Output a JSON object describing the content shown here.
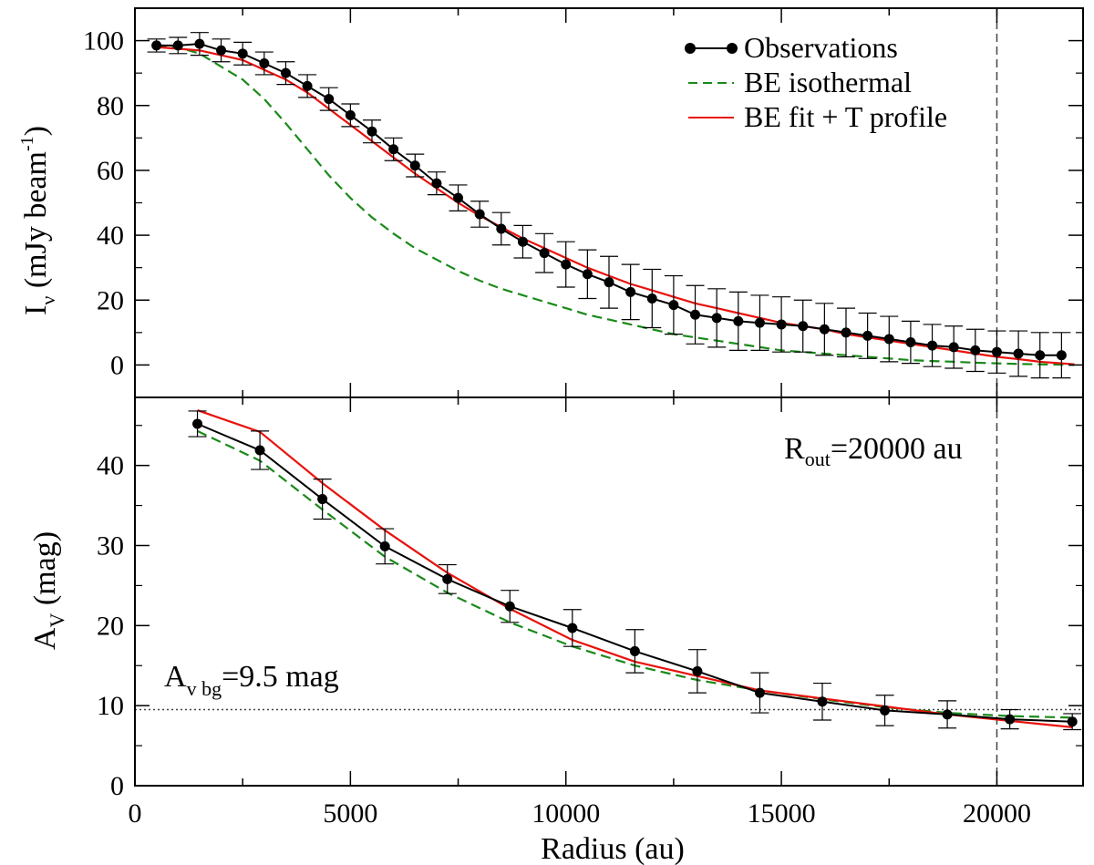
{
  "chart_data": [
    {
      "type": "line",
      "panel": "top",
      "xlim": [
        0,
        22000
      ],
      "ylim": [
        -10,
        110
      ],
      "yticks": [
        0,
        20,
        40,
        60,
        80,
        100
      ],
      "ylabel": {
        "main": "I",
        "sub": "ν",
        "rest": " (mJy beam",
        "sup": "-1",
        "end": ")"
      },
      "vline_x": 20000,
      "legend": [
        "Observations",
        "BE isothermal",
        "BE fit + T profile"
      ],
      "colors": {
        "observations": "#000000",
        "isothermal": "#1a8a1a",
        "fit": "#e8120c"
      },
      "observations": {
        "x": [
          500,
          1000,
          1500,
          2000,
          2500,
          3000,
          3500,
          4000,
          4500,
          5000,
          5500,
          6000,
          6500,
          7000,
          7500,
          8000,
          8500,
          9000,
          9500,
          10000,
          10500,
          11000,
          11500,
          12000,
          12500,
          13000,
          13500,
          14000,
          14500,
          15000,
          15500,
          16000,
          16500,
          17000,
          17500,
          18000,
          18500,
          19000,
          19500,
          20000,
          20500,
          21000,
          21500
        ],
        "y": [
          98.5,
          98.5,
          99,
          97,
          96,
          93,
          90,
          86,
          82,
          77,
          72,
          66.5,
          61.5,
          56,
          51.5,
          46.5,
          42,
          38,
          34.5,
          31,
          28,
          25.5,
          22.5,
          20.5,
          18.5,
          15.5,
          14.5,
          13.5,
          13,
          12.5,
          12,
          11,
          10,
          9,
          8,
          7,
          6,
          5.5,
          4.5,
          4,
          3.5,
          3,
          3
        ],
        "err": [
          2,
          2.5,
          3.5,
          3.5,
          3.5,
          3.5,
          3.5,
          3.5,
          3.5,
          3.5,
          3.5,
          3.5,
          3.5,
          3.5,
          4,
          4,
          5,
          5,
          6,
          7,
          7.5,
          8,
          8.5,
          9,
          9,
          9,
          9,
          9,
          8.5,
          8.5,
          8,
          8,
          7.5,
          7,
          7,
          6.5,
          6.5,
          6.5,
          6.5,
          6.5,
          7,
          7,
          7
        ]
      },
      "isothermal": {
        "x": [
          500,
          1000,
          1500,
          2000,
          2500,
          3000,
          3500,
          4000,
          4500,
          5000,
          5500,
          6000,
          6500,
          7000,
          7500,
          8000,
          8500,
          9000,
          9500,
          10000,
          10500,
          11000,
          11500,
          12000,
          12500,
          13000,
          13500,
          14000,
          14500,
          15000,
          15500,
          16000,
          16500,
          17000,
          17500,
          18000,
          18500,
          19000,
          19500,
          20000,
          20500,
          21000,
          21500,
          21800
        ],
        "y": [
          98.5,
          98,
          96,
          92,
          88,
          82,
          74.5,
          66.5,
          58.5,
          51.5,
          45.5,
          40.5,
          36,
          32.5,
          29,
          26,
          23.5,
          21.5,
          19.5,
          17.5,
          15.5,
          14,
          12.5,
          11,
          9.5,
          8.5,
          7.5,
          6.5,
          5.5,
          4.5,
          4,
          3.5,
          3,
          2.5,
          2,
          1.5,
          1.2,
          1,
          0.7,
          0.5,
          0.3,
          0.2,
          0.1,
          0
        ]
      },
      "fit": {
        "x": [
          500,
          1000,
          1500,
          2000,
          2500,
          3000,
          3500,
          4000,
          4500,
          5000,
          5500,
          6000,
          6500,
          7000,
          7500,
          8000,
          8500,
          9000,
          9500,
          10000,
          10500,
          11000,
          11500,
          12000,
          12500,
          13000,
          13500,
          14000,
          14500,
          15000,
          15500,
          16000,
          16500,
          17000,
          17500,
          18000,
          18500,
          19000,
          19500,
          20000,
          20500,
          21000,
          21500,
          21800
        ],
        "y": [
          98,
          97.5,
          97,
          95.5,
          94,
          91,
          88,
          84,
          79,
          74,
          69,
          64,
          59,
          54.5,
          50,
          46,
          42.5,
          39,
          36,
          33,
          30,
          27.5,
          25,
          23,
          21,
          19,
          17.5,
          16,
          14.5,
          13,
          12,
          11,
          9.5,
          8.5,
          7.5,
          6.5,
          5.5,
          4.5,
          3.5,
          2.5,
          1.8,
          1,
          0.5,
          0.2
        ]
      }
    },
    {
      "type": "line",
      "panel": "bottom",
      "xlim": [
        0,
        22000
      ],
      "ylim": [
        0,
        48.5
      ],
      "yticks": [
        0,
        10,
        20,
        30,
        40
      ],
      "xticks": [
        0,
        5000,
        10000,
        15000,
        20000
      ],
      "xlabel": "Radius (au)",
      "ylabel": {
        "main": "A",
        "sub": "V",
        "rest": " (mag)"
      },
      "vline_x": 20000,
      "hline_y": 9.5,
      "annotations": {
        "rout": {
          "main": "R",
          "sub": "out",
          "rest": "=20000 au"
        },
        "avbg": {
          "main": "A",
          "sub": "v bg",
          "rest": "=9.5 mag"
        }
      },
      "observations": {
        "x": [
          1450,
          2900,
          4350,
          5800,
          7250,
          8700,
          10150,
          11600,
          13050,
          14500,
          15950,
          17400,
          18850,
          20300,
          21750
        ],
        "y": [
          45.2,
          41.9,
          35.8,
          29.9,
          25.8,
          22.4,
          19.7,
          16.8,
          14.3,
          11.6,
          10.5,
          9.4,
          8.9,
          8.3,
          8.0
        ],
        "err": [
          1.6,
          2.4,
          2.5,
          2.2,
          1.8,
          2.0,
          2.3,
          2.7,
          2.7,
          2.5,
          2.3,
          1.9,
          1.7,
          1.2,
          1.0
        ]
      },
      "isothermal": {
        "x": [
          1450,
          2900,
          4350,
          5800,
          7250,
          8700,
          10150,
          11600,
          13050,
          14500,
          15950,
          17400,
          18850,
          20300,
          21750
        ],
        "y": [
          44.3,
          40.6,
          34.5,
          28.6,
          24.1,
          20.4,
          17.4,
          15.0,
          13.2,
          11.9,
          10.8,
          9.8,
          9.1,
          8.7,
          8.5
        ]
      },
      "fit": {
        "x": [
          1450,
          2900,
          4350,
          5800,
          7250,
          8700,
          10150,
          11600,
          13050,
          14500,
          15950,
          17400,
          18850,
          20300,
          21750
        ],
        "y": [
          46.9,
          44.2,
          37.8,
          31.9,
          26.6,
          22.1,
          18.2,
          15.5,
          13.7,
          11.9,
          10.9,
          9.9,
          8.9,
          8.1,
          7.3
        ]
      }
    }
  ]
}
